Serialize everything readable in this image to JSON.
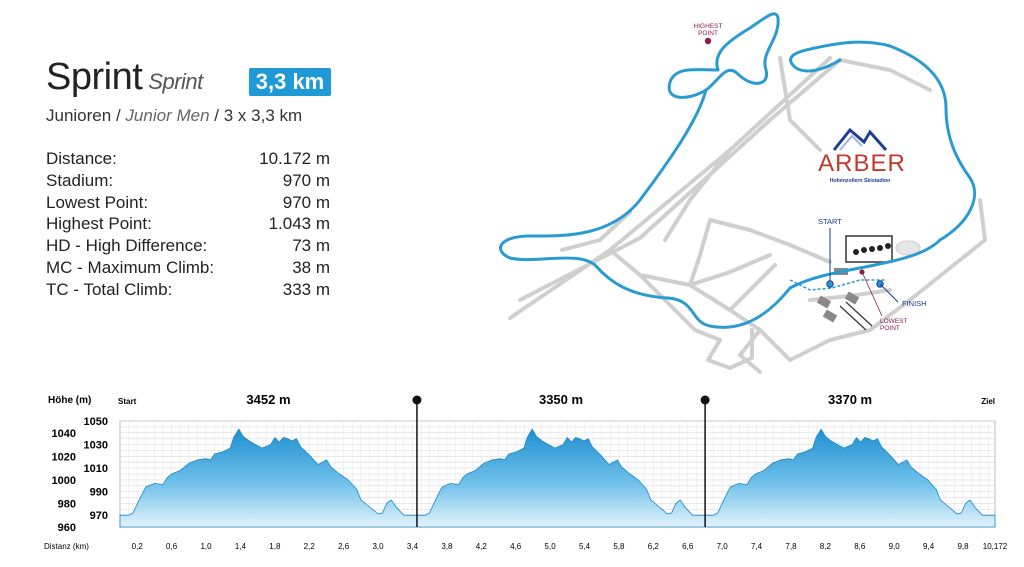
{
  "header": {
    "title": "Sprint",
    "title_sub": "Sprint",
    "badge": "3,3 km",
    "cat_main": "Junioren",
    "cat_sep1": "/",
    "cat_sub": "Junior Men",
    "cat_sep2": "/",
    "cat_laps": "3 x 3,3 km"
  },
  "stats": [
    {
      "label": "Distance:",
      "value": "10.172 m"
    },
    {
      "label": "Stadium:",
      "value": "970 m"
    },
    {
      "label": "Lowest Point:",
      "value": "970 m"
    },
    {
      "label": "Highest Point:",
      "value": "1.043 m"
    },
    {
      "label": "HD - High Difference:",
      "value": "73 m"
    },
    {
      "label": "MC - Maximum Climb:",
      "value": "38 m"
    },
    {
      "label": "TC - Total Climb:",
      "value": "333 m"
    }
  ],
  "map": {
    "highest_point": [
      "HIGHEST",
      "POINT"
    ],
    "start": "START",
    "finish": "FINISH",
    "lowest_point": [
      "LOWEST",
      "POINT"
    ],
    "logo_name": "ARBER",
    "logo_tagline": "Hohenzollern Skistadion",
    "colors": {
      "course": "#2a9bd1",
      "trails": "#c8c8c8",
      "marker": "#8b1f4b",
      "logo_red": "#c0392b",
      "logo_blue": "#1d3f8f"
    }
  },
  "chart_data": {
    "type": "area",
    "ylabel": "Höhe (m)",
    "xlabel": "Distanz (km)",
    "start_label": "Start",
    "end_label": "Ziel",
    "xlim": [
      0,
      10.172
    ],
    "ylim": [
      960,
      1050
    ],
    "y_ticks_left": [
      "1040",
      "1020",
      "1000",
      "980",
      "960"
    ],
    "y_ticks_right": [
      "1050",
      "1030",
      "1010",
      "990",
      "970"
    ],
    "x_ticks": [
      "0,2",
      "0,6",
      "1,0",
      "1,4",
      "1,8",
      "2,2",
      "2,6",
      "3,0",
      "3,4",
      "3,8",
      "4,2",
      "4,6",
      "5,0",
      "5,4",
      "5,8",
      "6,2",
      "6,6",
      "7,0",
      "7,4",
      "7,8",
      "8,2",
      "8,6",
      "9,0",
      "9,4",
      "9,8",
      "10,172"
    ],
    "laps": [
      {
        "label": "3452 m",
        "start": 0,
        "end": 3.452
      },
      {
        "label": "3350 m",
        "start": 3.452,
        "end": 6.802
      },
      {
        "label": "3370 m",
        "start": 6.802,
        "end": 10.172
      }
    ],
    "lap_profile": [
      [
        0,
        970
      ],
      [
        0.1,
        970
      ],
      [
        0.15,
        972
      ],
      [
        0.25,
        987
      ],
      [
        0.3,
        994
      ],
      [
        0.4,
        997
      ],
      [
        0.5,
        996
      ],
      [
        0.55,
        1002
      ],
      [
        0.6,
        1005
      ],
      [
        0.7,
        1008
      ],
      [
        0.8,
        1014
      ],
      [
        0.9,
        1017
      ],
      [
        1.0,
        1018
      ],
      [
        1.05,
        1017
      ],
      [
        1.1,
        1022
      ],
      [
        1.2,
        1024
      ],
      [
        1.28,
        1027
      ],
      [
        1.32,
        1036
      ],
      [
        1.38,
        1043
      ],
      [
        1.43,
        1037
      ],
      [
        1.5,
        1033
      ],
      [
        1.6,
        1029
      ],
      [
        1.65,
        1027
      ],
      [
        1.75,
        1030
      ],
      [
        1.8,
        1036
      ],
      [
        1.85,
        1032
      ],
      [
        1.9,
        1036
      ],
      [
        1.95,
        1035
      ],
      [
        2.0,
        1033
      ],
      [
        2.05,
        1035
      ],
      [
        2.1,
        1028
      ],
      [
        2.2,
        1021
      ],
      [
        2.3,
        1013
      ],
      [
        2.4,
        1017
      ],
      [
        2.45,
        1011
      ],
      [
        2.55,
        1005
      ],
      [
        2.65,
        1000
      ],
      [
        2.75,
        992
      ],
      [
        2.8,
        983
      ],
      [
        2.9,
        977
      ],
      [
        3.0,
        971
      ],
      [
        3.05,
        972
      ],
      [
        3.1,
        980
      ],
      [
        3.15,
        983
      ],
      [
        3.22,
        976
      ],
      [
        3.3,
        970
      ],
      [
        3.45,
        970
      ]
    ]
  }
}
